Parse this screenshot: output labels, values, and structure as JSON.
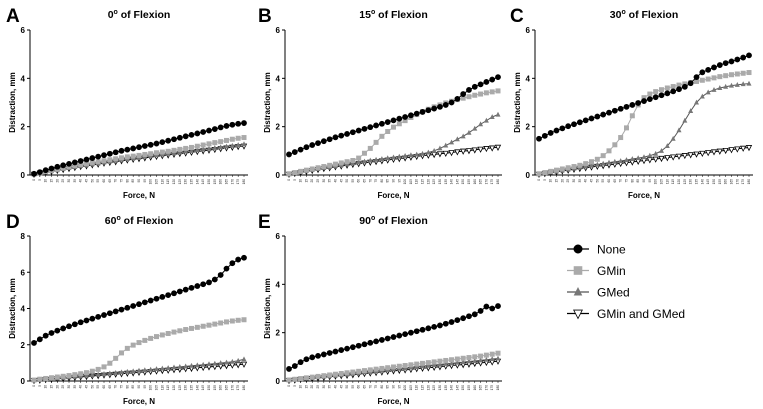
{
  "figure": {
    "panel_letters": [
      "A",
      "B",
      "C",
      "D",
      "E"
    ]
  },
  "chart_data": [
    {
      "panel": "A",
      "type": "line",
      "title": "0",
      "title_superscript": "o",
      "title_suffix": " of Flexion",
      "xlabel": "Force, N",
      "ylabel": "Distraction, mm",
      "ylim": [
        0,
        6
      ],
      "yticks": [
        "0",
        "2",
        "4",
        "6"
      ],
      "x": [
        0,
        5,
        10,
        15,
        20,
        25,
        30,
        35,
        40,
        45,
        50,
        55,
        60,
        65,
        70,
        75,
        80,
        85,
        90,
        95,
        100,
        105,
        110,
        115,
        120,
        125,
        130,
        135,
        140,
        145,
        150,
        155,
        160,
        165,
        170,
        175,
        180
      ],
      "series": [
        {
          "name": "None",
          "values": [
            0.05,
            0.12,
            0.2,
            0.27,
            0.34,
            0.4,
            0.46,
            0.52,
            0.58,
            0.64,
            0.7,
            0.76,
            0.82,
            0.88,
            0.94,
            1.0,
            1.05,
            1.1,
            1.15,
            1.2,
            1.25,
            1.3,
            1.36,
            1.42,
            1.48,
            1.54,
            1.6,
            1.66,
            1.72,
            1.78,
            1.84,
            1.9,
            1.97,
            2.03,
            2.08,
            2.12,
            2.15
          ]
        },
        {
          "name": "GMin",
          "values": [
            0.04,
            0.09,
            0.14,
            0.19,
            0.24,
            0.29,
            0.34,
            0.39,
            0.43,
            0.47,
            0.51,
            0.55,
            0.59,
            0.63,
            0.67,
            0.71,
            0.75,
            0.78,
            0.81,
            0.85,
            0.88,
            0.92,
            0.95,
            0.98,
            1.02,
            1.06,
            1.1,
            1.14,
            1.19,
            1.24,
            1.29,
            1.34,
            1.38,
            1.43,
            1.48,
            1.52,
            1.55
          ]
        },
        {
          "name": "GMed",
          "values": [
            0.03,
            0.07,
            0.12,
            0.16,
            0.2,
            0.25,
            0.29,
            0.33,
            0.37,
            0.41,
            0.45,
            0.48,
            0.52,
            0.56,
            0.59,
            0.63,
            0.66,
            0.7,
            0.73,
            0.76,
            0.79,
            0.82,
            0.85,
            0.88,
            0.91,
            0.94,
            0.97,
            1.0,
            1.03,
            1.06,
            1.09,
            1.12,
            1.15,
            1.18,
            1.21,
            1.24,
            1.28
          ]
        },
        {
          "name": "GMin and GMed",
          "values": [
            0.03,
            0.07,
            0.11,
            0.15,
            0.19,
            0.23,
            0.27,
            0.31,
            0.35,
            0.38,
            0.42,
            0.45,
            0.49,
            0.52,
            0.55,
            0.59,
            0.62,
            0.65,
            0.68,
            0.71,
            0.74,
            0.77,
            0.8,
            0.83,
            0.86,
            0.89,
            0.91,
            0.94,
            0.97,
            1.0,
            1.03,
            1.06,
            1.09,
            1.12,
            1.15,
            1.18,
            1.2
          ]
        }
      ]
    },
    {
      "panel": "B",
      "type": "line",
      "title": "15",
      "title_superscript": "o",
      "title_suffix": " of Flexion",
      "xlabel": "Force, N",
      "ylabel": "Distraction, mm",
      "ylim": [
        0,
        6
      ],
      "yticks": [
        "0",
        "2",
        "4",
        "6"
      ],
      "x": [
        0,
        5,
        10,
        15,
        20,
        25,
        30,
        35,
        40,
        45,
        50,
        55,
        60,
        65,
        70,
        75,
        80,
        85,
        90,
        95,
        100,
        105,
        110,
        115,
        120,
        125,
        130,
        135,
        140,
        145,
        150,
        155,
        160,
        165,
        170,
        175,
        180
      ],
      "series": [
        {
          "name": "None",
          "values": [
            0.85,
            0.95,
            1.05,
            1.15,
            1.24,
            1.32,
            1.4,
            1.48,
            1.56,
            1.63,
            1.7,
            1.77,
            1.84,
            1.91,
            1.98,
            2.05,
            2.12,
            2.19,
            2.26,
            2.33,
            2.4,
            2.47,
            2.54,
            2.61,
            2.68,
            2.75,
            2.82,
            2.9,
            3.0,
            3.15,
            3.35,
            3.52,
            3.65,
            3.75,
            3.85,
            3.95,
            4.05
          ]
        },
        {
          "name": "GMin",
          "values": [
            0.05,
            0.1,
            0.15,
            0.2,
            0.25,
            0.3,
            0.35,
            0.4,
            0.45,
            0.5,
            0.55,
            0.6,
            0.7,
            0.9,
            1.1,
            1.35,
            1.6,
            1.8,
            1.98,
            2.12,
            2.25,
            2.38,
            2.5,
            2.62,
            2.72,
            2.82,
            2.9,
            2.98,
            3.05,
            3.12,
            3.18,
            3.24,
            3.3,
            3.35,
            3.4,
            3.44,
            3.48
          ]
        },
        {
          "name": "GMed",
          "values": [
            0.03,
            0.08,
            0.13,
            0.17,
            0.21,
            0.25,
            0.29,
            0.33,
            0.37,
            0.41,
            0.45,
            0.49,
            0.53,
            0.56,
            0.6,
            0.63,
            0.66,
            0.7,
            0.73,
            0.76,
            0.79,
            0.82,
            0.85,
            0.88,
            0.93,
            1.0,
            1.1,
            1.22,
            1.35,
            1.48,
            1.6,
            1.75,
            1.92,
            2.1,
            2.25,
            2.4,
            2.5
          ]
        },
        {
          "name": "GMin and GMed",
          "values": [
            0.03,
            0.07,
            0.11,
            0.15,
            0.19,
            0.23,
            0.27,
            0.3,
            0.34,
            0.37,
            0.41,
            0.44,
            0.47,
            0.5,
            0.53,
            0.56,
            0.59,
            0.62,
            0.65,
            0.68,
            0.71,
            0.74,
            0.77,
            0.8,
            0.82,
            0.85,
            0.88,
            0.9,
            0.93,
            0.96,
            0.99,
            1.01,
            1.04,
            1.07,
            1.1,
            1.12,
            1.15
          ]
        }
      ]
    },
    {
      "panel": "C",
      "type": "line",
      "title": "30",
      "title_superscript": "o",
      "title_suffix": " of Flexion",
      "xlabel": "Force, N",
      "ylabel": "Distraction, mm",
      "ylim": [
        0,
        6
      ],
      "yticks": [
        "0",
        "2",
        "4",
        "6"
      ],
      "x": [
        0,
        5,
        10,
        15,
        20,
        25,
        30,
        35,
        40,
        45,
        50,
        55,
        60,
        65,
        70,
        75,
        80,
        85,
        90,
        95,
        100,
        105,
        110,
        115,
        120,
        125,
        130,
        135,
        140,
        145,
        150,
        155,
        160,
        165,
        170,
        175,
        180
      ],
      "series": [
        {
          "name": "None",
          "values": [
            1.5,
            1.62,
            1.74,
            1.84,
            1.93,
            2.02,
            2.1,
            2.18,
            2.26,
            2.34,
            2.42,
            2.5,
            2.58,
            2.66,
            2.74,
            2.82,
            2.9,
            2.98,
            3.06,
            3.14,
            3.22,
            3.3,
            3.38,
            3.46,
            3.55,
            3.65,
            3.8,
            4.05,
            4.25,
            4.35,
            4.45,
            4.55,
            4.63,
            4.7,
            4.78,
            4.86,
            4.95
          ]
        },
        {
          "name": "GMin",
          "values": [
            0.05,
            0.1,
            0.15,
            0.2,
            0.25,
            0.3,
            0.35,
            0.4,
            0.47,
            0.55,
            0.65,
            0.8,
            1.0,
            1.25,
            1.55,
            1.95,
            2.45,
            2.9,
            3.2,
            3.35,
            3.45,
            3.53,
            3.6,
            3.66,
            3.72,
            3.77,
            3.82,
            3.87,
            3.92,
            3.97,
            4.02,
            4.07,
            4.11,
            4.15,
            4.18,
            4.21,
            4.24
          ]
        },
        {
          "name": "GMed",
          "values": [
            0.03,
            0.07,
            0.11,
            0.15,
            0.19,
            0.23,
            0.27,
            0.31,
            0.35,
            0.39,
            0.43,
            0.47,
            0.51,
            0.55,
            0.58,
            0.62,
            0.66,
            0.7,
            0.74,
            0.8,
            0.88,
            1.0,
            1.2,
            1.5,
            1.85,
            2.25,
            2.65,
            3.0,
            3.25,
            3.42,
            3.52,
            3.6,
            3.65,
            3.7,
            3.73,
            3.76,
            3.78
          ]
        },
        {
          "name": "GMin and GMed",
          "values": [
            0.03,
            0.06,
            0.1,
            0.13,
            0.17,
            0.2,
            0.24,
            0.27,
            0.3,
            0.33,
            0.36,
            0.39,
            0.42,
            0.45,
            0.48,
            0.51,
            0.54,
            0.57,
            0.6,
            0.63,
            0.66,
            0.69,
            0.72,
            0.75,
            0.78,
            0.81,
            0.84,
            0.87,
            0.9,
            0.93,
            0.96,
            0.99,
            1.02,
            1.05,
            1.08,
            1.11,
            1.14
          ]
        }
      ]
    },
    {
      "panel": "D",
      "type": "line",
      "title": "60",
      "title_superscript": "o",
      "title_suffix": " of Flexion",
      "xlabel": "Force, N",
      "ylabel": "Distraction, mm",
      "ylim": [
        0,
        8
      ],
      "yticks": [
        "0",
        "2",
        "4",
        "6",
        "8"
      ],
      "x": [
        0,
        5,
        10,
        15,
        20,
        25,
        30,
        35,
        40,
        45,
        50,
        55,
        60,
        65,
        70,
        75,
        80,
        85,
        90,
        95,
        100,
        105,
        110,
        115,
        120,
        125,
        130,
        135,
        140,
        145,
        150,
        155,
        160,
        165,
        170,
        175,
        180
      ],
      "series": [
        {
          "name": "None",
          "values": [
            2.1,
            2.3,
            2.5,
            2.65,
            2.78,
            2.9,
            3.02,
            3.13,
            3.24,
            3.34,
            3.44,
            3.54,
            3.64,
            3.74,
            3.84,
            3.94,
            4.04,
            4.14,
            4.24,
            4.34,
            4.44,
            4.54,
            4.64,
            4.74,
            4.84,
            4.94,
            5.04,
            5.14,
            5.24,
            5.34,
            5.44,
            5.6,
            5.85,
            6.2,
            6.5,
            6.7,
            6.8
          ]
        },
        {
          "name": "GMin",
          "values": [
            0.05,
            0.1,
            0.14,
            0.18,
            0.22,
            0.26,
            0.3,
            0.35,
            0.4,
            0.46,
            0.54,
            0.64,
            0.78,
            0.98,
            1.25,
            1.55,
            1.8,
            1.98,
            2.12,
            2.24,
            2.35,
            2.45,
            2.54,
            2.62,
            2.7,
            2.77,
            2.84,
            2.9,
            2.96,
            3.02,
            3.08,
            3.14,
            3.2,
            3.26,
            3.31,
            3.35,
            3.38
          ]
        },
        {
          "name": "GMed",
          "values": [
            0.03,
            0.06,
            0.09,
            0.12,
            0.15,
            0.18,
            0.21,
            0.24,
            0.27,
            0.3,
            0.33,
            0.36,
            0.39,
            0.42,
            0.45,
            0.48,
            0.51,
            0.54,
            0.57,
            0.6,
            0.63,
            0.66,
            0.69,
            0.72,
            0.75,
            0.78,
            0.81,
            0.84,
            0.87,
            0.9,
            0.93,
            0.96,
            0.99,
            1.02,
            1.06,
            1.12,
            1.2
          ]
        },
        {
          "name": "GMin and GMed",
          "values": [
            0.03,
            0.05,
            0.08,
            0.1,
            0.13,
            0.15,
            0.18,
            0.2,
            0.23,
            0.25,
            0.28,
            0.3,
            0.33,
            0.35,
            0.38,
            0.4,
            0.43,
            0.45,
            0.48,
            0.5,
            0.53,
            0.55,
            0.58,
            0.6,
            0.63,
            0.65,
            0.68,
            0.7,
            0.73,
            0.75,
            0.78,
            0.8,
            0.83,
            0.85,
            0.88,
            0.9,
            0.93
          ]
        }
      ]
    },
    {
      "panel": "E",
      "type": "line",
      "title": "90",
      "title_superscript": "o",
      "title_suffix": " of Flexion",
      "xlabel": "Force, N",
      "ylabel": "Distraction, mm",
      "ylim": [
        0,
        6
      ],
      "yticks": [
        "0",
        "2",
        "4",
        "6"
      ],
      "x": [
        0,
        5,
        10,
        15,
        20,
        25,
        30,
        35,
        40,
        45,
        50,
        55,
        60,
        65,
        70,
        75,
        80,
        85,
        90,
        95,
        100,
        105,
        110,
        115,
        120,
        125,
        130,
        135,
        140,
        145,
        150,
        155,
        160,
        165,
        170,
        175,
        180
      ],
      "series": [
        {
          "name": "None",
          "values": [
            0.5,
            0.62,
            0.78,
            0.9,
            0.98,
            1.04,
            1.1,
            1.16,
            1.22,
            1.28,
            1.34,
            1.4,
            1.46,
            1.52,
            1.58,
            1.64,
            1.7,
            1.76,
            1.82,
            1.88,
            1.94,
            2.0,
            2.06,
            2.12,
            2.18,
            2.24,
            2.3,
            2.37,
            2.44,
            2.52,
            2.6,
            2.68,
            2.76,
            2.9,
            3.08,
            3.0,
            3.1
          ]
        },
        {
          "name": "GMin",
          "values": [
            0.04,
            0.07,
            0.1,
            0.13,
            0.16,
            0.19,
            0.22,
            0.25,
            0.28,
            0.31,
            0.34,
            0.37,
            0.4,
            0.43,
            0.46,
            0.49,
            0.52,
            0.55,
            0.58,
            0.61,
            0.64,
            0.67,
            0.7,
            0.73,
            0.76,
            0.79,
            0.82,
            0.85,
            0.88,
            0.91,
            0.94,
            0.97,
            1.0,
            1.03,
            1.07,
            1.11,
            1.15
          ]
        },
        {
          "name": "GMed",
          "values": [
            0.03,
            0.06,
            0.08,
            0.11,
            0.13,
            0.16,
            0.18,
            0.21,
            0.23,
            0.26,
            0.28,
            0.31,
            0.33,
            0.36,
            0.38,
            0.41,
            0.43,
            0.46,
            0.48,
            0.51,
            0.53,
            0.56,
            0.58,
            0.61,
            0.63,
            0.66,
            0.68,
            0.71,
            0.73,
            0.76,
            0.78,
            0.81,
            0.83,
            0.86,
            0.88,
            0.91,
            0.93
          ]
        },
        {
          "name": "GMin and GMed",
          "values": [
            0.02,
            0.04,
            0.07,
            0.09,
            0.11,
            0.13,
            0.15,
            0.18,
            0.2,
            0.22,
            0.24,
            0.26,
            0.29,
            0.31,
            0.33,
            0.35,
            0.37,
            0.4,
            0.42,
            0.44,
            0.46,
            0.48,
            0.51,
            0.53,
            0.55,
            0.57,
            0.59,
            0.62,
            0.64,
            0.66,
            0.68,
            0.7,
            0.73,
            0.75,
            0.77,
            0.79,
            0.82
          ]
        }
      ]
    }
  ],
  "legend": {
    "placement": "right of panel E",
    "items": [
      {
        "label": "None",
        "marker": "circle",
        "color": "#000000",
        "line_color": "#000000"
      },
      {
        "label": "GMin",
        "marker": "square",
        "color": "#aaaaaa",
        "line_color": "#aaaaaa"
      },
      {
        "label": "GMed",
        "marker": "triangle-up",
        "color": "#777777",
        "line_color": "#555555"
      },
      {
        "label": "GMin and GMed",
        "marker": "triangle-down-open",
        "color": "#000000",
        "line_color": "#000000"
      }
    ]
  }
}
